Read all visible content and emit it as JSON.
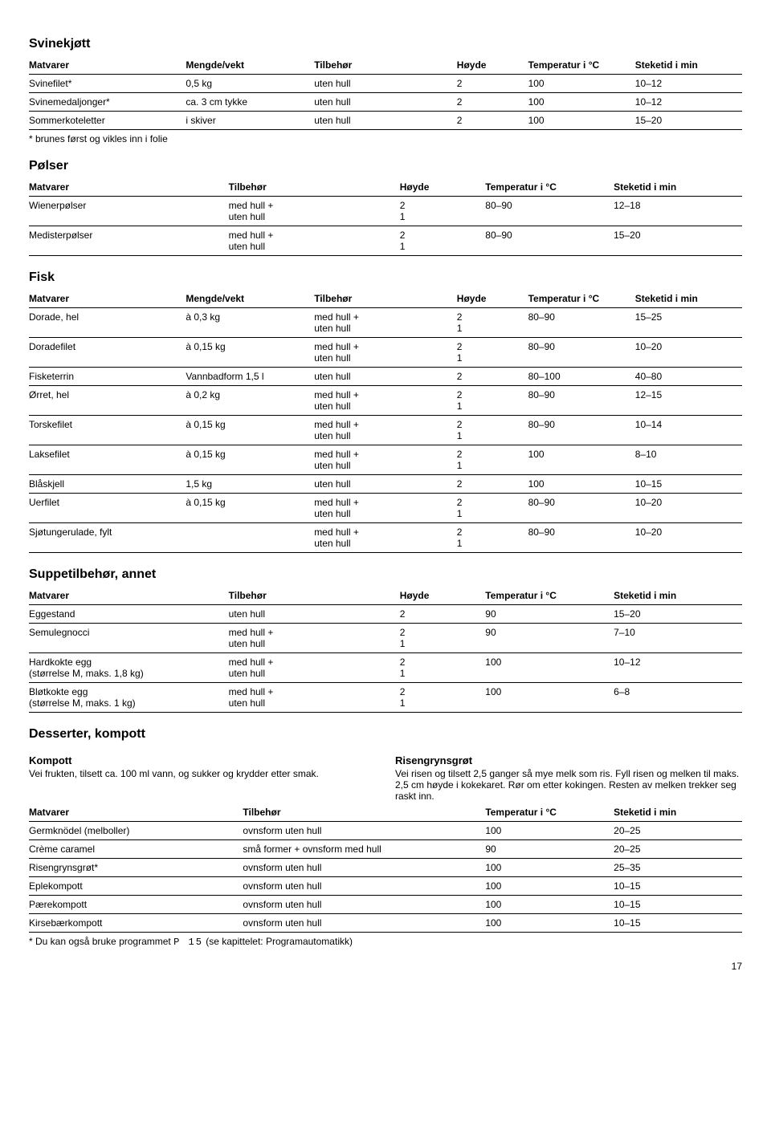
{
  "page_number": "17",
  "svinekjott": {
    "title": "Svinekjøtt",
    "headers": [
      "Matvarer",
      "Mengde/vekt",
      "Tilbehør",
      "Høyde",
      "Temperatur i °C",
      "Steketid i min"
    ],
    "rows": [
      {
        "c": [
          "Svinefilet*",
          "0,5 kg",
          "uten hull",
          "2",
          "100",
          "10–12"
        ]
      },
      {
        "c": [
          "Svinemedaljonger*",
          "ca. 3 cm tykke",
          "uten hull",
          "2",
          "100",
          "10–12"
        ]
      },
      {
        "c": [
          "Sommerkoteletter",
          "i skiver",
          "uten hull",
          "2",
          "100",
          "15–20"
        ]
      }
    ],
    "footnote": "* brunes først og vikles inn i folie"
  },
  "polser": {
    "title": "Pølser",
    "headers": [
      "Matvarer",
      "Tilbehør",
      "Høyde",
      "Temperatur i °C",
      "Steketid i min"
    ],
    "rows": [
      {
        "c": [
          "Wienerpølser",
          "med hull +\nuten hull",
          "2\n1",
          "80–90",
          "12–18"
        ]
      },
      {
        "c": [
          "Medisterpølser",
          "med hull +\nuten hull",
          "2\n1",
          "80–90",
          "15–20"
        ]
      }
    ]
  },
  "fisk": {
    "title": "Fisk",
    "headers": [
      "Matvarer",
      "Mengde/vekt",
      "Tilbehør",
      "Høyde",
      "Temperatur i °C",
      "Steketid i min"
    ],
    "rows": [
      {
        "c": [
          "Dorade, hel",
          "à 0,3 kg",
          "med hull +\nuten hull",
          "2\n1",
          "80–90",
          "15–25"
        ]
      },
      {
        "c": [
          "Doradefilet",
          "à 0,15 kg",
          "med hull +\nuten hull",
          "2\n1",
          "80–90",
          "10–20"
        ]
      },
      {
        "c": [
          "Fisketerrin",
          "Vannbadform 1,5 l",
          "uten hull",
          "2",
          "80–100",
          "40–80"
        ]
      },
      {
        "c": [
          "Ørret, hel",
          "à 0,2 kg",
          "med hull +\nuten hull",
          "2\n1",
          "80–90",
          "12–15"
        ]
      },
      {
        "c": [
          "Torskefilet",
          "à 0,15 kg",
          "med hull +\nuten hull",
          "2\n1",
          "80–90",
          "10–14"
        ]
      },
      {
        "c": [
          "Laksefilet",
          "à 0,15 kg",
          "med hull +\nuten hull",
          "2\n1",
          "100",
          "8–10"
        ]
      },
      {
        "c": [
          "Blåskjell",
          "1,5 kg",
          "uten hull",
          "2",
          "100",
          "10–15"
        ]
      },
      {
        "c": [
          "Uerfilet",
          "à 0,15 kg",
          "med hull +\nuten hull",
          "2\n1",
          "80–90",
          "10–20"
        ]
      },
      {
        "c": [
          "Sjøtungerulade, fylt",
          "",
          "med hull +\nuten hull",
          "2\n1",
          "80–90",
          "10–20"
        ]
      }
    ]
  },
  "suppe": {
    "title": "Suppetilbehør, annet",
    "headers": [
      "Matvarer",
      "Tilbehør",
      "Høyde",
      "Temperatur i °C",
      "Steketid i min"
    ],
    "rows": [
      {
        "c": [
          "Eggestand",
          "uten hull",
          "2",
          "90",
          "15–20"
        ]
      },
      {
        "c": [
          "Semulegnocci",
          "med hull +\nuten hull",
          "2\n1",
          "90",
          "7–10"
        ]
      },
      {
        "c": [
          "Hardkokte egg\n(størrelse M, maks. 1,8 kg)",
          "med hull +\nuten hull",
          "2\n1",
          "100",
          "10–12"
        ]
      },
      {
        "c": [
          "Bløtkokte egg\n(størrelse M, maks. 1 kg)",
          "med hull +\nuten hull",
          "2\n1",
          "100",
          "6–8"
        ]
      }
    ]
  },
  "dessert": {
    "title": "Desserter, kompott",
    "kompott_title": "Kompott",
    "kompott_text": "Vei frukten, tilsett ca. 100 ml vann, og sukker og krydder etter smak.",
    "risen_title": "Risengrynsgrøt",
    "risen_text": "Vei risen og tilsett 2,5 ganger så mye melk som ris. Fyll risen og melken til maks. 2,5 cm høyde i kokekaret. Rør om etter kokingen. Resten av melken trekker seg raskt inn.",
    "headers": [
      "Matvarer",
      "Tilbehør",
      "Temperatur i °C",
      "Steketid i min"
    ],
    "rows": [
      {
        "c": [
          "Germknödel (melboller)",
          "ovnsform uten hull",
          "100",
          "20–25"
        ]
      },
      {
        "c": [
          "Crème caramel",
          "små former + ovnsform med hull",
          "90",
          "20–25"
        ]
      },
      {
        "c": [
          "Risengrynsgrøt*",
          "ovnsform uten hull",
          "100",
          "25–35"
        ]
      },
      {
        "c": [
          "Eplekompott",
          "ovnsform uten hull",
          "100",
          "10–15"
        ]
      },
      {
        "c": [
          "Pærekompott",
          "ovnsform uten hull",
          "100",
          "10–15"
        ]
      },
      {
        "c": [
          "Kirsebærkompott",
          "ovnsform uten hull",
          "100",
          "10–15"
        ]
      }
    ],
    "footnote_pre": "* Du kan også bruke programmet ",
    "footnote_prog": "P 15",
    "footnote_post": " (se kapittelet: Programautomatikk)"
  },
  "col_widths": {
    "six": [
      "22%",
      "18%",
      "20%",
      "10%",
      "15%",
      "15%"
    ],
    "five": [
      "28%",
      "24%",
      "12%",
      "18%",
      "18%"
    ],
    "four": [
      "30%",
      "34%",
      "18%",
      "18%"
    ]
  }
}
